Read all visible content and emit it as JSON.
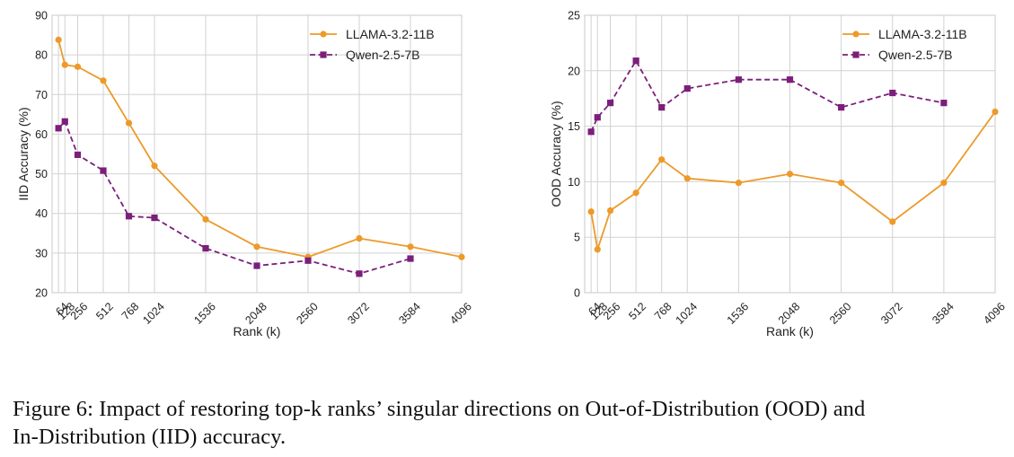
{
  "chart_data": [
    {
      "type": "line",
      "xlabel": "Rank (k)",
      "ylabel": "IID Accuracy (%)",
      "xlim": [
        0,
        4096
      ],
      "ylim": [
        20,
        90
      ],
      "yticks": [
        20,
        30,
        40,
        50,
        60,
        70,
        80,
        90
      ],
      "xticks": [
        64,
        128,
        256,
        512,
        768,
        1024,
        1536,
        2048,
        2560,
        3072,
        3584,
        4096
      ],
      "grid": true,
      "legend_position": "top-right",
      "series": [
        {
          "name": "LLAMA-3.2-11B",
          "color": "#ED9A2A",
          "style": "solid",
          "marker": "circle",
          "points": [
            [
              64,
              83.8
            ],
            [
              128,
              77.5
            ],
            [
              256,
              77.0
            ],
            [
              512,
              73.5
            ],
            [
              768,
              62.8
            ],
            [
              1024,
              52.0
            ],
            [
              1536,
              38.5
            ],
            [
              2048,
              31.6
            ],
            [
              2560,
              29.0
            ],
            [
              3072,
              33.7
            ],
            [
              3584,
              31.6
            ],
            [
              4096,
              29.0
            ]
          ]
        },
        {
          "name": "Qwen-2.5-7B",
          "color": "#7B1F7A",
          "style": "dashed",
          "marker": "square",
          "points": [
            [
              64,
              61.5
            ],
            [
              128,
              63.2
            ],
            [
              256,
              54.8
            ],
            [
              512,
              50.8
            ],
            [
              768,
              39.3
            ],
            [
              1024,
              38.9
            ],
            [
              1536,
              31.2
            ],
            [
              2048,
              26.8
            ],
            [
              2560,
              28.1
            ],
            [
              3072,
              24.8
            ],
            [
              3584,
              28.6
            ]
          ]
        }
      ]
    },
    {
      "type": "line",
      "xlabel": "Rank (k)",
      "ylabel": "OOD Accuracy (%)",
      "xlim": [
        0,
        4096
      ],
      "ylim": [
        0,
        25
      ],
      "yticks": [
        0,
        5,
        10,
        15,
        20,
        25
      ],
      "xticks": [
        64,
        128,
        256,
        512,
        768,
        1024,
        1536,
        2048,
        2560,
        3072,
        3584,
        4096
      ],
      "grid": true,
      "legend_position": "top-right",
      "series": [
        {
          "name": "LLAMA-3.2-11B",
          "color": "#ED9A2A",
          "style": "solid",
          "marker": "circle",
          "points": [
            [
              64,
              7.3
            ],
            [
              128,
              3.9
            ],
            [
              256,
              7.4
            ],
            [
              512,
              9.0
            ],
            [
              768,
              12.0
            ],
            [
              1024,
              10.3
            ],
            [
              1536,
              9.9
            ],
            [
              2048,
              10.7
            ],
            [
              2560,
              9.9
            ],
            [
              3072,
              6.4
            ],
            [
              3584,
              9.9
            ],
            [
              4096,
              16.3
            ]
          ]
        },
        {
          "name": "Qwen-2.5-7B",
          "color": "#7B1F7A",
          "style": "dashed",
          "marker": "square",
          "points": [
            [
              64,
              14.5
            ],
            [
              128,
              15.8
            ],
            [
              256,
              17.1
            ],
            [
              512,
              20.9
            ],
            [
              768,
              16.7
            ],
            [
              1024,
              18.4
            ],
            [
              1536,
              19.2
            ],
            [
              2048,
              19.2
            ],
            [
              2560,
              16.7
            ],
            [
              3072,
              18.0
            ],
            [
              3584,
              17.1
            ]
          ]
        }
      ]
    }
  ],
  "caption": {
    "line1": "Figure 6: Impact of restoring top-k ranks’ singular directions on Out-of-Distribution (OOD) and",
    "line2": "In-Distribution (IID) accuracy."
  }
}
